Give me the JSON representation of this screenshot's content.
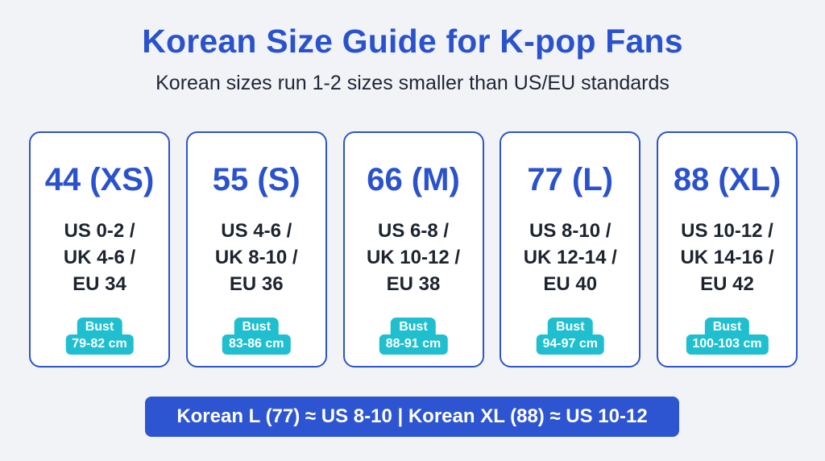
{
  "header": {
    "title": "Korean Size Guide for K-pop Fans",
    "subtitle": "Korean sizes run 1-2 sizes smaller than US/EU standards"
  },
  "cards": [
    {
      "size": "44 (XS)",
      "us": "US 0-2 /",
      "uk": "UK 4-6 /",
      "eu": "EU 34",
      "bust_label": "Bust",
      "bust_value": "79-82 cm"
    },
    {
      "size": "55 (S)",
      "us": "US 4-6 /",
      "uk": "UK 8-10 /",
      "eu": "EU 36",
      "bust_label": "Bust",
      "bust_value": "83-86 cm"
    },
    {
      "size": "66 (M)",
      "us": "US 6-8 /",
      "uk": "UK 10-12 /",
      "eu": "EU 38",
      "bust_label": "Bust",
      "bust_value": "88-91 cm"
    },
    {
      "size": "77 (L)",
      "us": "US 8-10 /",
      "uk": "UK 12-14 /",
      "eu": "EU 40",
      "bust_label": "Bust",
      "bust_value": "94-97 cm"
    },
    {
      "size": "88 (XL)",
      "us": "US 10-12 /",
      "uk": "UK 14-16 /",
      "eu": "EU 42",
      "bust_label": "Bust",
      "bust_value": "100-103 cm"
    }
  ],
  "footer": {
    "banner": "Korean L (77) ≈ US 8-10 | Korean XL (88) ≈ US 10-12"
  },
  "colors": {
    "accent": "#2a52cc",
    "bust_badge": "#20bfcf",
    "banner": "#2d55d1",
    "background": "#f1f3f7"
  }
}
